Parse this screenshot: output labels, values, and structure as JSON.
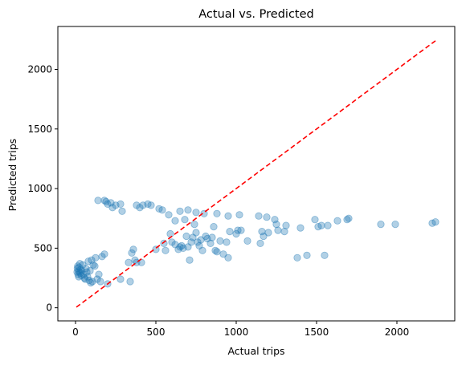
{
  "chart_data": {
    "type": "scatter",
    "title": "Actual vs. Predicted",
    "xlabel": "Actual trips",
    "ylabel": "Predicted trips",
    "xlim": [
      -110,
      2360
    ],
    "ylim": [
      -110,
      2360
    ],
    "xticks": [
      0,
      500,
      1000,
      1500,
      2000
    ],
    "yticks": [
      0,
      500,
      1000,
      1500,
      2000
    ],
    "grid": false,
    "point_color": "#1f77b4",
    "point_opacity": 0.35,
    "reference_line": {
      "style": "dashed",
      "color": "#ff0000",
      "from": [
        5,
        5
      ],
      "to": [
        2240,
        2240
      ]
    },
    "points": [
      [
        10,
        300
      ],
      [
        12,
        330
      ],
      [
        14,
        350
      ],
      [
        16,
        280
      ],
      [
        18,
        310
      ],
      [
        20,
        260
      ],
      [
        22,
        340
      ],
      [
        25,
        300
      ],
      [
        27,
        370
      ],
      [
        30,
        290
      ],
      [
        33,
        320
      ],
      [
        36,
        270
      ],
      [
        40,
        310
      ],
      [
        45,
        360
      ],
      [
        50,
        280
      ],
      [
        55,
        250
      ],
      [
        60,
        240
      ],
      [
        65,
        330
      ],
      [
        70,
        300
      ],
      [
        75,
        260
      ],
      [
        80,
        390
      ],
      [
        85,
        230
      ],
      [
        90,
        310
      ],
      [
        95,
        210
      ],
      [
        100,
        400
      ],
      [
        105,
        220
      ],
      [
        110,
        360
      ],
      [
        120,
        350
      ],
      [
        125,
        420
      ],
      [
        135,
        240
      ],
      [
        145,
        280
      ],
      [
        155,
        220
      ],
      [
        165,
        430
      ],
      [
        180,
        450
      ],
      [
        200,
        200
      ],
      [
        280,
        240
      ],
      [
        330,
        380
      ],
      [
        340,
        220
      ],
      [
        350,
        460
      ],
      [
        360,
        490
      ],
      [
        370,
        400
      ],
      [
        380,
        380
      ],
      [
        410,
        380
      ],
      [
        500,
        490
      ],
      [
        550,
        540
      ],
      [
        560,
        480
      ],
      [
        590,
        620
      ],
      [
        600,
        550
      ],
      [
        620,
        530
      ],
      [
        640,
        490
      ],
      [
        650,
        510
      ],
      [
        660,
        520
      ],
      [
        670,
        500
      ],
      [
        680,
        740
      ],
      [
        690,
        600
      ],
      [
        700,
        510
      ],
      [
        710,
        400
      ],
      [
        720,
        550
      ],
      [
        730,
        590
      ],
      [
        740,
        700
      ],
      [
        750,
        630
      ],
      [
        760,
        550
      ],
      [
        770,
        520
      ],
      [
        780,
        570
      ],
      [
        790,
        480
      ],
      [
        810,
        600
      ],
      [
        820,
        580
      ],
      [
        840,
        540
      ],
      [
        850,
        590
      ],
      [
        860,
        680
      ],
      [
        870,
        480
      ],
      [
        880,
        470
      ],
      [
        900,
        560
      ],
      [
        920,
        450
      ],
      [
        940,
        550
      ],
      [
        950,
        420
      ],
      [
        960,
        640
      ],
      [
        1000,
        620
      ],
      [
        1010,
        650
      ],
      [
        1020,
        780
      ],
      [
        1030,
        650
      ],
      [
        1070,
        560
      ],
      [
        1140,
        770
      ],
      [
        1150,
        540
      ],
      [
        1160,
        640
      ],
      [
        1170,
        600
      ],
      [
        1190,
        760
      ],
      [
        1200,
        630
      ],
      [
        1240,
        740
      ],
      [
        1250,
        700
      ],
      [
        1260,
        650
      ],
      [
        1300,
        640
      ],
      [
        1310,
        690
      ],
      [
        1380,
        420
      ],
      [
        1400,
        670
      ],
      [
        1440,
        440
      ],
      [
        1490,
        740
      ],
      [
        1510,
        680
      ],
      [
        1530,
        690
      ],
      [
        1550,
        440
      ],
      [
        1570,
        690
      ],
      [
        1630,
        730
      ],
      [
        1690,
        740
      ],
      [
        1700,
        750
      ],
      [
        1900,
        700
      ],
      [
        1990,
        700
      ],
      [
        2220,
        710
      ],
      [
        2240,
        720
      ],
      [
        140,
        900
      ],
      [
        180,
        900
      ],
      [
        190,
        890
      ],
      [
        200,
        870
      ],
      [
        220,
        880
      ],
      [
        230,
        840
      ],
      [
        250,
        860
      ],
      [
        280,
        870
      ],
      [
        290,
        810
      ],
      [
        380,
        860
      ],
      [
        400,
        840
      ],
      [
        420,
        860
      ],
      [
        450,
        870
      ],
      [
        470,
        860
      ],
      [
        520,
        830
      ],
      [
        540,
        820
      ],
      [
        580,
        780
      ],
      [
        620,
        730
      ],
      [
        650,
        810
      ],
      [
        700,
        820
      ],
      [
        750,
        800
      ],
      [
        800,
        790
      ],
      [
        880,
        790
      ],
      [
        950,
        770
      ]
    ]
  }
}
